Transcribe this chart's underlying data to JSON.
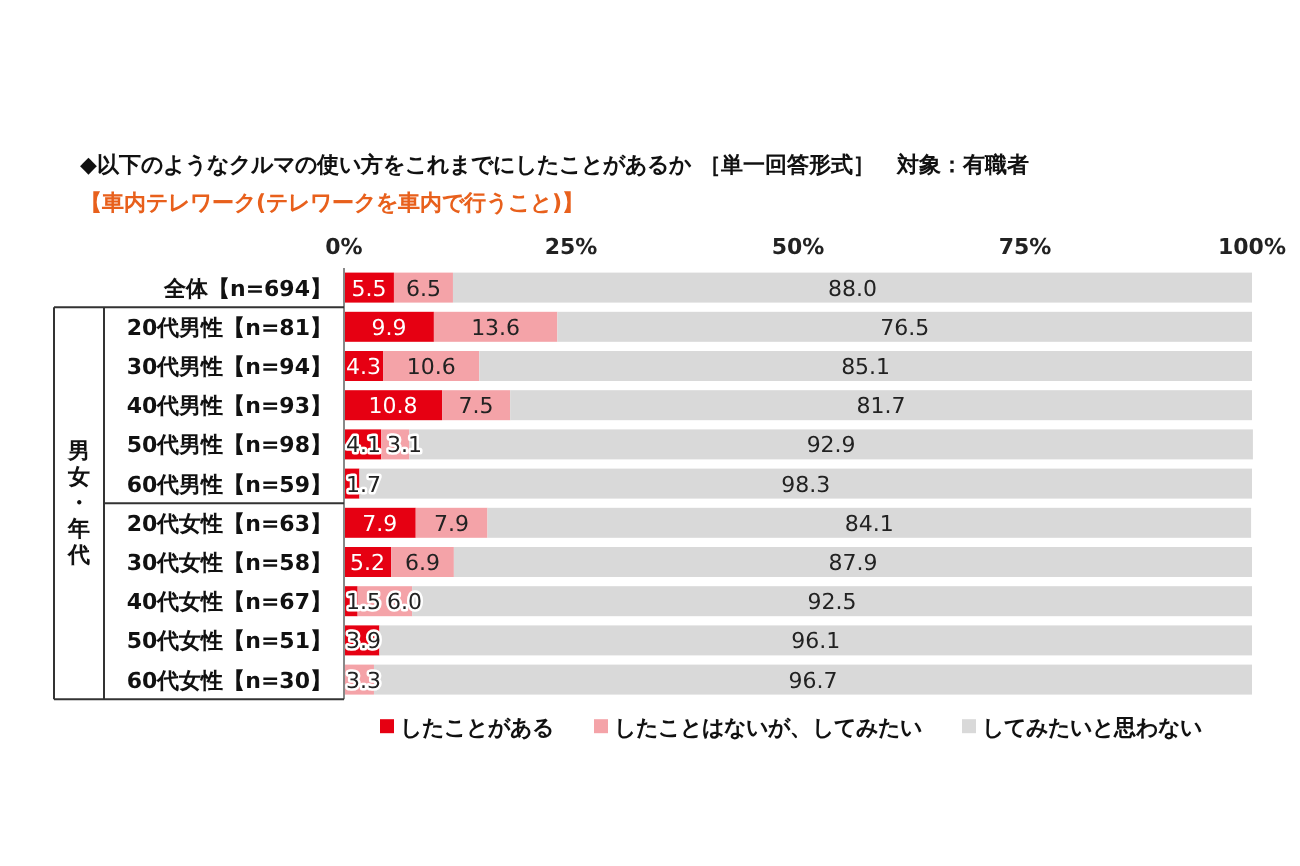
{
  "chart_data": {
    "type": "bar",
    "orientation": "horizontal",
    "stacked": true,
    "title": "◆以下のようなクルマの使い方をこれまでにしたことがあるか ［単一回答形式］　対象：有職者",
    "subtitle": "【車内テレワーク(テレワークを車内で行うこと)】",
    "categories": [
      "全体【n=694】",
      "20代男性【n=81】",
      "30代男性【n=94】",
      "40代男性【n=93】",
      "50代男性【n=98】",
      "60代男性【n=59】",
      "20代女性【n=63】",
      "30代女性【n=58】",
      "40代女性【n=67】",
      "50代女性【n=51】",
      "60代女性【n=30】"
    ],
    "series": [
      {
        "name": "したことがある",
        "color": "#e60012",
        "values": [
          5.5,
          9.9,
          4.3,
          10.8,
          4.1,
          1.7,
          7.9,
          5.2,
          1.5,
          3.9,
          0
        ],
        "value_labels": [
          "5.5",
          "9.9",
          "4.3",
          "10.8",
          "4.1",
          "1.7",
          "7.9",
          "5.2",
          "1.5",
          "3.9",
          null
        ]
      },
      {
        "name": "したことはないが、してみたい",
        "color": "#f4a3a8",
        "values": [
          6.5,
          13.6,
          10.6,
          7.5,
          3.1,
          0,
          7.9,
          6.9,
          6.0,
          0,
          3.3
        ],
        "value_labels": [
          "6.5",
          "13.6",
          "10.6",
          "7.5",
          "3.1",
          null,
          "7.9",
          "6.9",
          "6.0",
          null,
          "3.3"
        ]
      },
      {
        "name": "してみたいと思わない",
        "color": "#d9d9d9",
        "values": [
          88.0,
          76.5,
          85.1,
          81.7,
          92.9,
          98.3,
          84.1,
          87.9,
          92.5,
          96.1,
          96.7
        ],
        "value_labels": [
          "88.0",
          "76.5",
          "85.1",
          "81.7",
          "92.9",
          "98.3",
          "84.1",
          "87.9",
          "92.5",
          "96.1",
          "96.7"
        ]
      }
    ],
    "xlim": [
      0,
      100
    ],
    "xticks": [
      {
        "value": 0,
        "label": "0%"
      },
      {
        "value": 25,
        "label": "25%"
      },
      {
        "value": 50,
        "label": "50%"
      },
      {
        "value": 75,
        "label": "75%"
      },
      {
        "value": 100,
        "label": "100%"
      }
    ],
    "annotations": [
      "男女・年代"
    ],
    "legend": "bottom",
    "grid": false
  }
}
